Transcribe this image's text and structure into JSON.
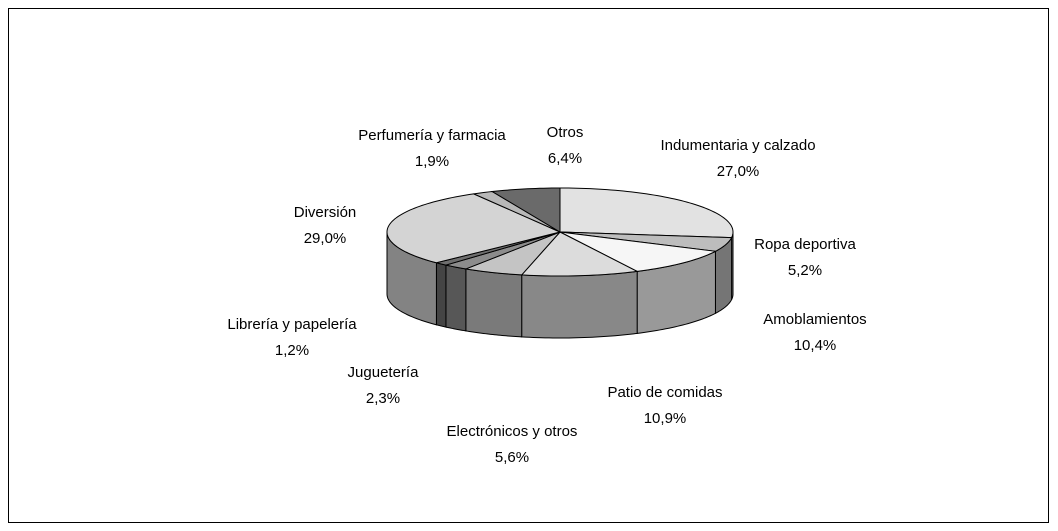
{
  "chart_data": {
    "type": "pie",
    "categories": [
      "Indumentaria y calzado",
      "Ropa deportiva",
      "Amoblamientos",
      "Patio de comidas",
      "Electrónicos y otros",
      "Juguetería",
      "Librería y papelería",
      "Diversión",
      "Perfumería y farmacia",
      "Otros"
    ],
    "values": [
      27.0,
      5.2,
      10.4,
      10.9,
      5.6,
      2.3,
      1.2,
      29.0,
      1.9,
      6.4
    ],
    "value_labels": [
      "27,0%",
      "5,2%",
      "10,4%",
      "10,9%",
      "5,6%",
      "2,3%",
      "1,2%",
      "29,0%",
      "1,9%",
      "6,4%"
    ],
    "colors": [
      "#e2e2e2",
      "#bdbdbd",
      "#f6f6f6",
      "#dcdcdc",
      "#c4c4c4",
      "#8c8c8c",
      "#6e6e6e",
      "#d4d4d4",
      "#b8b8b8",
      "#6a6a6a"
    ]
  }
}
